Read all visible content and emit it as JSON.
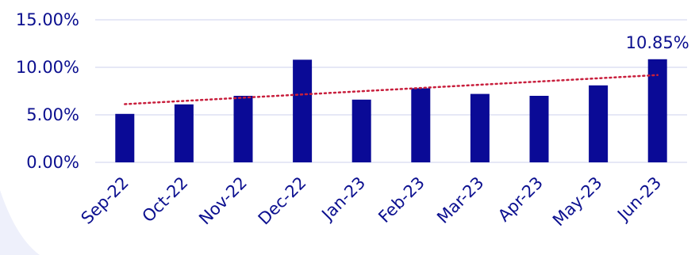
{
  "chart_data": {
    "type": "bar",
    "categories": [
      "Sep-22",
      "Oct-22",
      "Nov-22",
      "Dec-22",
      "Jan-23",
      "Feb-23",
      "Mar-23",
      "Apr-23",
      "May-23",
      "Jun-23"
    ],
    "values": [
      5.1,
      6.1,
      7.0,
      10.8,
      6.6,
      7.8,
      7.2,
      7.0,
      8.1,
      10.85
    ],
    "ylim": [
      0,
      15
    ],
    "yticks": [
      "0.00%",
      "5.00%",
      "10.00%",
      "15.00%"
    ],
    "ytick_values": [
      0,
      5,
      10,
      15
    ],
    "data_labels": [
      {
        "category": "Jun-23",
        "text": "10.85%"
      }
    ],
    "trendline": {
      "type": "linear",
      "style": "dotted"
    },
    "grid": true,
    "colors": {
      "bar": "#0a0a96",
      "trend": "#c81e3c",
      "grid": "#cdd2ee",
      "text": "#0b0f8f"
    }
  }
}
